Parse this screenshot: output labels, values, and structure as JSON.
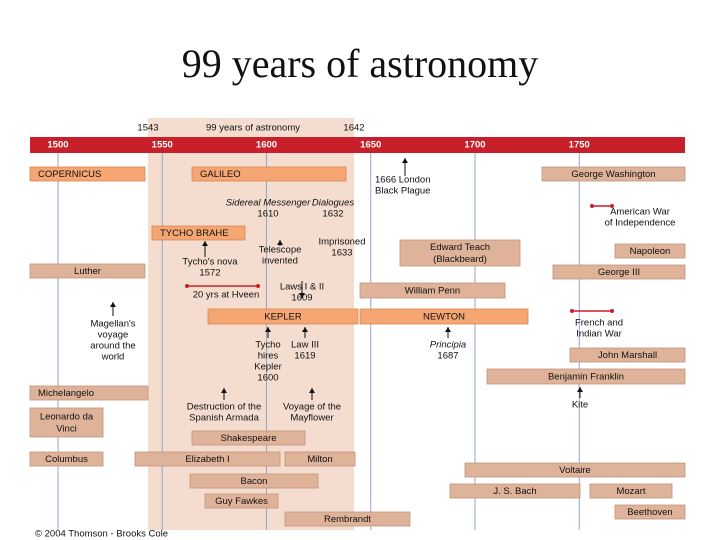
{
  "title": "99 years of astronomy",
  "header": {
    "start": "1543",
    "label": "99 years of astronomy",
    "end": "1642"
  },
  "axis": {
    "ticks": [
      1500,
      1550,
      1600,
      1650,
      1700,
      1750
    ]
  },
  "bars": [
    {
      "label": "COPERNICUS"
    },
    {
      "label": "GALILEO"
    },
    {
      "label": "George Washington"
    },
    {
      "label": "TYCHO BRAHE"
    },
    {
      "label": "Edward Teach (Blackbeard)"
    },
    {
      "label": "Napoleon"
    },
    {
      "label": "Luther"
    },
    {
      "label": "George III"
    },
    {
      "label": "William Penn"
    },
    {
      "label": "KEPLER"
    },
    {
      "label": "NEWTON"
    },
    {
      "label": "John Marshall"
    },
    {
      "label": "Benjamin Franklin"
    },
    {
      "label": "Michelangelo"
    },
    {
      "label": "Leonardo da Vinci"
    },
    {
      "label": "Shakespeare"
    },
    {
      "label": "Columbus"
    },
    {
      "label": "Elizabeth I"
    },
    {
      "label": "Milton"
    },
    {
      "label": "Voltaire"
    },
    {
      "label": "Bacon"
    },
    {
      "label": "J. S. Bach"
    },
    {
      "label": "Mozart"
    },
    {
      "label": "Guy Fawkes"
    },
    {
      "label": "Rembrandt"
    },
    {
      "label": "Beethoven"
    }
  ],
  "notes": [
    {
      "lines": [
        "Sidereal Messenger",
        "1610"
      ]
    },
    {
      "lines": [
        "Dialogues",
        "1632"
      ]
    },
    {
      "lines": [
        "1666 London",
        "Black Plague"
      ]
    },
    {
      "lines": [
        "American War",
        "of Independence"
      ]
    },
    {
      "lines": [
        "Imprisoned",
        "1633"
      ]
    },
    {
      "lines": [
        "Telescope",
        "invented"
      ]
    },
    {
      "lines": [
        "Tycho's nova",
        "1572"
      ]
    },
    {
      "lines": [
        "Laws I & II",
        "1609"
      ]
    },
    {
      "lines": [
        "20 yrs at Hveen"
      ]
    },
    {
      "lines": [
        "Magellan's",
        "voyage",
        "around the",
        "world"
      ]
    },
    {
      "lines": [
        "French and",
        "Indian War"
      ]
    },
    {
      "lines": [
        "Tycho",
        "hires",
        "Kepler",
        "1600"
      ]
    },
    {
      "lines": [
        "Law III",
        "1619"
      ]
    },
    {
      "lines": [
        "Principia",
        "1687"
      ]
    },
    {
      "lines": [
        "Kite"
      ]
    },
    {
      "lines": [
        "Destruction of the",
        "Spanish Armada"
      ]
    },
    {
      "lines": [
        "Voyage of the",
        "Mayflower"
      ]
    }
  ],
  "copyright": "© 2004 Thomson - Brooks Cole"
}
